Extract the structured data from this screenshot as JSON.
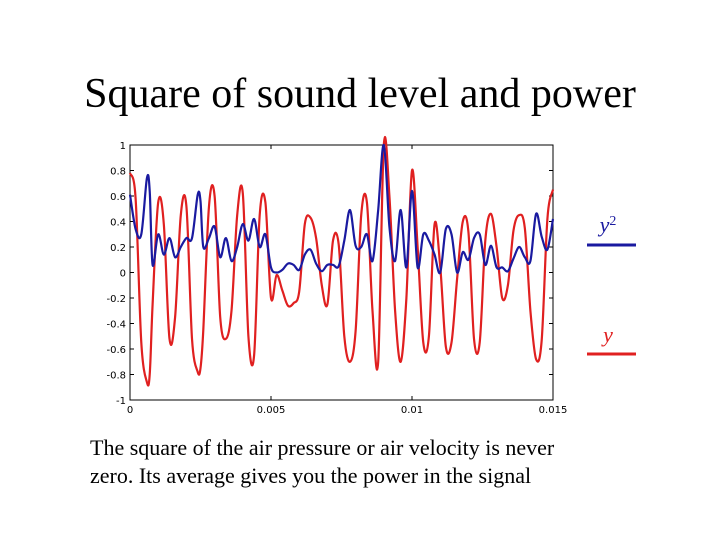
{
  "slide": {
    "title": "Square of sound level and power",
    "caption_line1": "The square of the air pressure or air velocity is never",
    "caption_line2": "zero.  Its average gives you the power in the signal"
  },
  "chart_data": {
    "type": "line",
    "title": "",
    "xlabel": "",
    "ylabel": "",
    "xlim": [
      0,
      0.015
    ],
    "ylim": [
      -1,
      1
    ],
    "xticks": [
      0,
      0.005,
      0.01,
      0.015
    ],
    "xtick_labels": [
      "0",
      "0.005",
      "0.01",
      "0.015"
    ],
    "yticks": [
      1,
      0.8,
      0.6,
      0.4,
      0.2,
      0,
      -0.2,
      -0.4,
      -0.6,
      -0.8,
      -1
    ],
    "ytick_labels": [
      "1",
      "0.8",
      "0.6",
      "0.4",
      "0.2",
      "0",
      "-0.2",
      "-0.4",
      "-0.6",
      "-0.8",
      "-1"
    ],
    "grid": false,
    "legend_position": "right",
    "series": [
      {
        "name": "y",
        "label_base": "y",
        "color": "#e02020",
        "x": [
          0,
          0.0002,
          0.0004,
          0.0006,
          0.0007,
          0.0008,
          0.001,
          0.0012,
          0.0014,
          0.0016,
          0.0018,
          0.002,
          0.0022,
          0.0024,
          0.0025,
          0.0026,
          0.0028,
          0.003,
          0.0032,
          0.0034,
          0.0036,
          0.0038,
          0.004,
          0.0042,
          0.0044,
          0.0046,
          0.0048,
          0.005,
          0.0052,
          0.0054,
          0.0056,
          0.0058,
          0.006,
          0.0062,
          0.0064,
          0.0066,
          0.0068,
          0.007,
          0.0072,
          0.0074,
          0.0076,
          0.0078,
          0.008,
          0.0082,
          0.0084,
          0.0086,
          0.0088,
          0.009,
          0.0092,
          0.0094,
          0.0096,
          0.0098,
          0.01,
          0.0102,
          0.0104,
          0.0106,
          0.0108,
          0.011,
          0.0112,
          0.0114,
          0.0116,
          0.0118,
          0.012,
          0.0122,
          0.0124,
          0.0126,
          0.0128,
          0.013,
          0.0132,
          0.0134,
          0.0136,
          0.0138,
          0.014,
          0.0142,
          0.0144,
          0.0146,
          0.0148,
          0.015
        ],
        "values": [
          0.78,
          0.58,
          -0.55,
          -0.86,
          -0.8,
          -0.25,
          0.55,
          0.38,
          -0.52,
          -0.35,
          0.45,
          0.52,
          -0.52,
          -0.78,
          -0.75,
          -0.45,
          0.52,
          0.6,
          -0.35,
          -0.52,
          -0.3,
          0.45,
          0.62,
          -0.5,
          -0.65,
          0.45,
          0.55,
          -0.2,
          -0.02,
          -0.14,
          -0.26,
          -0.24,
          -0.15,
          0.38,
          0.43,
          0.27,
          -0.1,
          -0.25,
          0.25,
          0.22,
          -0.5,
          -0.7,
          -0.46,
          0.45,
          0.55,
          -0.3,
          -0.7,
          1,
          0.6,
          -0.3,
          -0.7,
          -0.2,
          0.8,
          0.2,
          -0.55,
          -0.5,
          0.38,
          0.05,
          -0.58,
          -0.55,
          -0.05,
          0.4,
          0.32,
          -0.52,
          -0.55,
          0.25,
          0.46,
          0.2,
          -0.2,
          -0.1,
          0.33,
          0.45,
          0.35,
          -0.3,
          -0.68,
          -0.53,
          0.42,
          0.65
        ]
      },
      {
        "name": "y²",
        "label_base": "y",
        "label_sup": "2",
        "color": "#1a1aa0",
        "x": [
          0,
          0.0002,
          0.0004,
          0.0006,
          0.0007,
          0.0008,
          0.001,
          0.0012,
          0.0014,
          0.0016,
          0.0018,
          0.002,
          0.0022,
          0.0024,
          0.0025,
          0.0026,
          0.0028,
          0.003,
          0.0032,
          0.0034,
          0.0036,
          0.0038,
          0.004,
          0.0042,
          0.0044,
          0.0046,
          0.0048,
          0.005,
          0.0052,
          0.0054,
          0.0056,
          0.0058,
          0.006,
          0.0062,
          0.0064,
          0.0066,
          0.0068,
          0.007,
          0.0072,
          0.0074,
          0.0076,
          0.0078,
          0.008,
          0.0082,
          0.0084,
          0.0086,
          0.0088,
          0.009,
          0.0092,
          0.0094,
          0.0096,
          0.0098,
          0.01,
          0.0102,
          0.0104,
          0.0106,
          0.0108,
          0.011,
          0.0112,
          0.0114,
          0.0116,
          0.0118,
          0.012,
          0.0122,
          0.0124,
          0.0126,
          0.0128,
          0.013,
          0.0132,
          0.0134,
          0.0136,
          0.0138,
          0.014,
          0.0142,
          0.0144,
          0.0146,
          0.0148,
          0.015
        ],
        "values": [
          0.61,
          0.34,
          0.3,
          0.74,
          0.64,
          0.06,
          0.3,
          0.14,
          0.27,
          0.12,
          0.2,
          0.27,
          0.27,
          0.61,
          0.56,
          0.2,
          0.27,
          0.36,
          0.12,
          0.27,
          0.09,
          0.2,
          0.38,
          0.25,
          0.42,
          0.2,
          0.3,
          0.04,
          0.0,
          0.02,
          0.07,
          0.06,
          0.02,
          0.14,
          0.18,
          0.07,
          0.01,
          0.06,
          0.06,
          0.05,
          0.25,
          0.49,
          0.21,
          0.2,
          0.3,
          0.09,
          0.49,
          1.0,
          0.36,
          0.09,
          0.49,
          0.04,
          0.64,
          0.04,
          0.3,
          0.25,
          0.14,
          0.0,
          0.34,
          0.3,
          0.0,
          0.16,
          0.1,
          0.27,
          0.3,
          0.06,
          0.21,
          0.04,
          0.04,
          0.01,
          0.11,
          0.2,
          0.12,
          0.09,
          0.46,
          0.28,
          0.18,
          0.42
        ]
      }
    ]
  }
}
